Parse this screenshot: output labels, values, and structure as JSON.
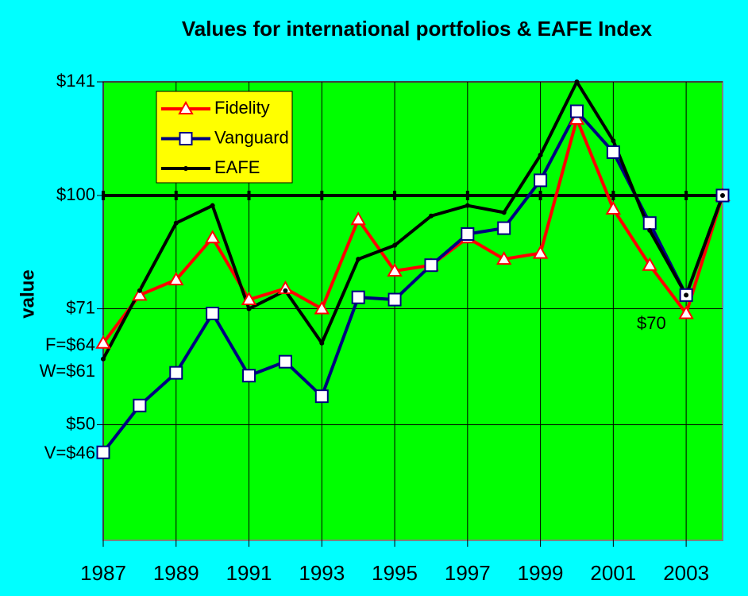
{
  "chart_data": {
    "type": "line",
    "title": "Values for international  portfolios & EAFE Index",
    "ylabel": "value",
    "log_y": true,
    "grid": true,
    "reference_line": 100,
    "legend": "upper left",
    "x": [
      1987,
      1988,
      1989,
      1990,
      1991,
      1992,
      1993,
      1994,
      1995,
      1996,
      1997,
      1998,
      1999,
      2000,
      2001,
      2002,
      2003,
      2004
    ],
    "xlim": [
      1987,
      2004
    ],
    "xticks": [
      1987,
      1989,
      1991,
      1993,
      1995,
      1997,
      1999,
      2001,
      2003
    ],
    "ylim": [
      35.25,
      141
    ],
    "yticks": [
      {
        "value": 141,
        "label": "$141"
      },
      {
        "value": 100,
        "label": "$100"
      },
      {
        "value": 71,
        "label": "$71"
      },
      {
        "value": 50,
        "label": "$50"
      }
    ],
    "series": [
      {
        "name": "Fidelity",
        "color": "#ff0000",
        "marker": "triangle",
        "values": [
          64,
          74,
          77.5,
          88,
          73,
          75.5,
          71,
          93,
          79.6,
          81,
          88,
          82.5,
          84,
          126,
          96,
          81,
          70,
          100
        ]
      },
      {
        "name": "Vanguard",
        "color": "#000080",
        "marker": "square",
        "values": [
          46,
          53,
          58.5,
          70,
          58,
          60.5,
          54.5,
          73.5,
          73,
          81,
          89,
          90.6,
          104.7,
          129,
          114,
          92,
          74,
          100
        ]
      },
      {
        "name": "EAFE",
        "color": "#000000",
        "marker": "dot",
        "values": [
          61,
          75,
          92,
          97,
          71,
          75,
          64,
          82.5,
          86,
          94,
          97,
          95,
          113,
          141,
          118,
          90,
          74,
          100
        ]
      }
    ],
    "annotations": [
      "F=$64",
      "W=$61",
      "V=$46",
      "$70"
    ]
  }
}
